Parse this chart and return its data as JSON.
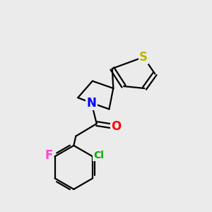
{
  "bg_color": "#ebebeb",
  "bond_color": "#000000",
  "bond_width": 1.6,
  "atoms": {
    "S": {
      "color": "#b8b800",
      "fontsize": 12,
      "fontweight": "bold"
    },
    "N": {
      "color": "#0000ff",
      "fontsize": 12,
      "fontweight": "bold"
    },
    "O": {
      "color": "#ff0000",
      "fontsize": 12,
      "fontweight": "bold"
    },
    "Cl": {
      "color": "#00aa00",
      "fontsize": 10,
      "fontweight": "bold"
    },
    "F": {
      "color": "#ff44cc",
      "fontsize": 12,
      "fontweight": "bold"
    }
  },
  "xlim": [
    0,
    10
  ],
  "ylim": [
    0,
    10
  ]
}
